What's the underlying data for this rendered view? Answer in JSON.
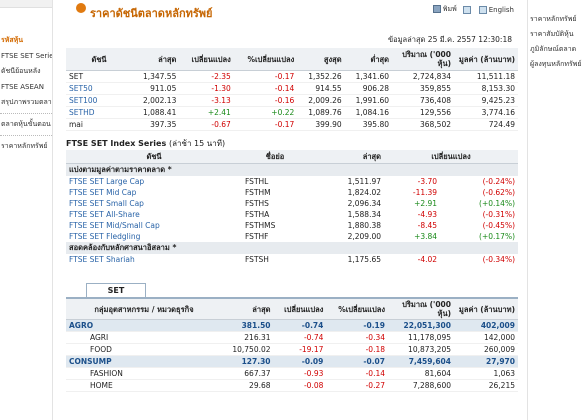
{
  "left_nav": [
    "",
    "รหัสหุ้น",
    "FTSE SET Series",
    "ดัชนีย้อนหลัง",
    "FTSE ASEAN",
    "สรุปภาพรวมตลาดหลักทรัพย์",
    "",
    "ตลาดหุ้นขั้นตอน",
    "",
    "ราคาหลักทรัพย์"
  ],
  "right_nav": [
    "ราคาหลักทรัพย์",
    "ราคาสัมบัติหุ้น",
    "ภูมิลักษณ์ตลาด",
    "ผู้ลงทุนหลักทรัพย์"
  ],
  "header": {
    "title": "ราคาดัชนีตลาดหลักทรัพย์",
    "print": "พิมพ์",
    "thai": "ไทย",
    "english": "English"
  },
  "as_of": "ข้อมูลล่าสุด 25 มี.ค. 2557 12:30:18",
  "index_table": {
    "headers": [
      "ดัชนี",
      "ล่าสุด",
      "เปลี่ยนแปลง",
      "%เปลี่ยนแปลง",
      "สูงสุด",
      "ต่ำสุด",
      "ปริมาณ ('000 หุ้น)",
      "มูลค่า (ล้านบาท)"
    ],
    "rows": [
      [
        "SET",
        "1,347.55",
        "-2.35",
        "-0.17",
        "1,352.26",
        "1,341.60",
        "2,724,834",
        "11,511.18"
      ],
      [
        "SET50",
        "911.05",
        "-1.30",
        "-0.14",
        "914.55",
        "906.28",
        "359,855",
        "8,153.30"
      ],
      [
        "SET100",
        "2,002.13",
        "-3.13",
        "-0.16",
        "2,009.26",
        "1,991.60",
        "736,408",
        "9,425.23"
      ],
      [
        "SETHD",
        "1,088.41",
        "+2.41",
        "+0.22",
        "1,089.76",
        "1,084.16",
        "129,556",
        "3,774.16"
      ],
      [
        "mai",
        "397.35",
        "-0.67",
        "-0.17",
        "399.90",
        "395.80",
        "368,502",
        "724.49"
      ]
    ]
  },
  "ftse": {
    "title": "FTSE SET Index Series",
    "subtitle": "(ล่าช้า 15 นาที)",
    "headers": [
      "ดัชนี",
      "ชื่อย่อ",
      "ล่าสุด",
      "เปลี่ยนแปลง"
    ],
    "group1": "แบ่งตามมูลค่าตามราคาตลาด *",
    "rows1": [
      [
        "FTSE SET Large Cap",
        "FSTHL",
        "1,511.97",
        "-3.70",
        "(-0.24%)"
      ],
      [
        "FTSE SET Mid Cap",
        "FSTHM",
        "1,824.02",
        "-11.39",
        "(-0.62%)"
      ],
      [
        "FTSE SET Small Cap",
        "FSTHS",
        "2,096.34",
        "+2.91",
        "(+0.14%)"
      ],
      [
        "FTSE SET All-Share",
        "FSTHA",
        "1,588.34",
        "-4.93",
        "(-0.31%)"
      ],
      [
        "FTSE SET Mid/Small Cap",
        "FSTHMS",
        "1,880.38",
        "-8.45",
        "(-0.45%)"
      ],
      [
        "FTSE SET Fledgling",
        "FSTHF",
        "2,209.00",
        "+3.84",
        "(+0.17%)"
      ]
    ],
    "group2": "สอดคล้องกับหลักศาสนาอิสลาม *",
    "rows2": [
      [
        "FTSE SET Shariah",
        "FSTSH",
        "1,175.65",
        "-4.02",
        "(-0.34%)"
      ]
    ]
  },
  "set_tab": "SET",
  "sector_table": {
    "headers": [
      "กลุ่มอุตสาหกรรม / หมวดธุรกิจ",
      "ล่าสุด",
      "เปลี่ยนแปลง",
      "%เปลี่ยนแปลง",
      "ปริมาณ ('000 หุ้น)",
      "มูลค่า (ล้านบาท)"
    ],
    "rows": [
      {
        "group": true,
        "cells": [
          "AGRO",
          "381.50",
          "-0.74",
          "-0.19",
          "22,051,300",
          "402,009"
        ]
      },
      {
        "group": false,
        "cells": [
          "AGRI",
          "216.31",
          "-0.74",
          "-0.34",
          "11,178,095",
          "142,000"
        ]
      },
      {
        "group": false,
        "cells": [
          "FOOD",
          "10,750.02",
          "-19.17",
          "-0.18",
          "10,873,205",
          "260,009"
        ]
      },
      {
        "group": true,
        "cells": [
          "CONSUMP",
          "127.30",
          "-0.09",
          "-0.07",
          "7,459,604",
          "27,970"
        ]
      },
      {
        "group": false,
        "cells": [
          "FASHION",
          "667.37",
          "-0.93",
          "-0.14",
          "81,604",
          "1,063"
        ]
      },
      {
        "group": false,
        "cells": [
          "HOME",
          "29.68",
          "-0.08",
          "-0.27",
          "7,288,600",
          "26,215"
        ]
      }
    ]
  },
  "colors": {
    "accent": "#c66500",
    "negative": "#d00000",
    "positive": "#1a8a1a",
    "header_bg": "#eef1f4"
  }
}
